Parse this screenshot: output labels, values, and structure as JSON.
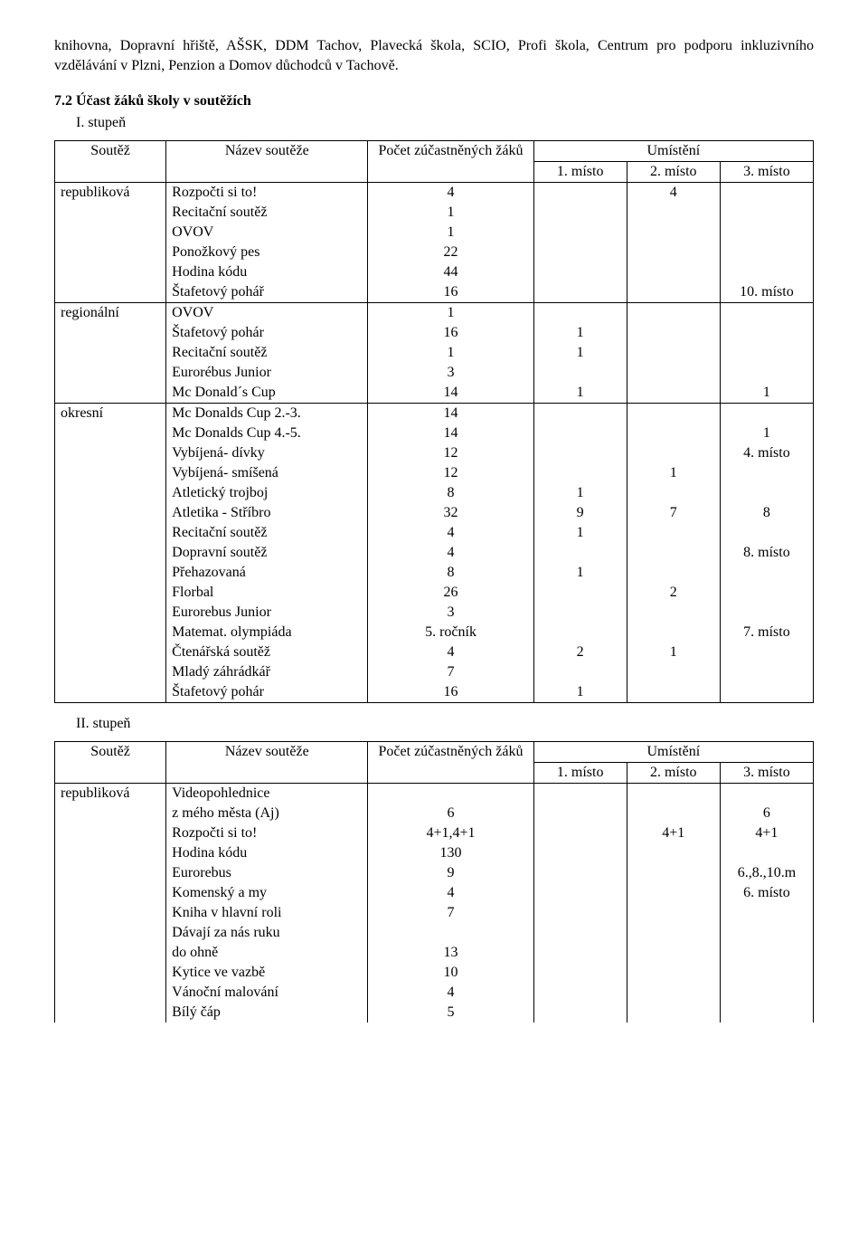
{
  "intro": "knihovna, Dopravní hřiště, AŠSK, DDM Tachov, Plavecká škola, SCIO, Profi škola, Centrum pro podporu inkluzivního vzdělávání v Plzni, Penzion a Domov důchodců v Tachově.",
  "section_heading": "7.2 Účast žáků školy v soutěžích",
  "sub1": "I. stupeň",
  "sub2": "II. stupeň",
  "headers": {
    "soutez": "Soutěž",
    "nazev": "Název soutěže",
    "pocet": "Počet zúčastněných žáků",
    "umisteni": "Umístění",
    "m1": "1. místo",
    "m2": "2. místo",
    "m3": "3. místo"
  },
  "t1": {
    "groups": [
      {
        "type": "republiková",
        "rows": [
          {
            "n": "Rozpočti si to!",
            "p": "4",
            "m1": "",
            "m2": "4",
            "m3": ""
          },
          {
            "n": "Recitační soutěž",
            "p": "1",
            "m1": "",
            "m2": "",
            "m3": ""
          },
          {
            "n": "OVOV",
            "p": "1",
            "m1": "",
            "m2": "",
            "m3": ""
          },
          {
            "n": "Ponožkový pes",
            "p": "22",
            "m1": "",
            "m2": "",
            "m3": ""
          },
          {
            "n": "Hodina kódu",
            "p": "44",
            "m1": "",
            "m2": "",
            "m3": ""
          },
          {
            "n": "Štafetový pohář",
            "p": "16",
            "m1": "",
            "m2": "",
            "m3": "10. místo"
          }
        ]
      },
      {
        "type": "regionální",
        "rows": [
          {
            "n": "OVOV",
            "p": "1",
            "m1": "",
            "m2": "",
            "m3": ""
          },
          {
            "n": "Štafetový pohár",
            "p": "16",
            "m1": "1",
            "m2": "",
            "m3": ""
          },
          {
            "n": "Recitační soutěž",
            "p": "1",
            "m1": "1",
            "m2": "",
            "m3": ""
          },
          {
            "n": "Eurorébus Junior",
            "p": "3",
            "m1": "",
            "m2": "",
            "m3": ""
          },
          {
            "n": "Mc Donald´s Cup",
            "p": "14",
            "m1": "1",
            "m2": "",
            "m3": "1"
          }
        ]
      },
      {
        "type": "okresní",
        "rows": [
          {
            "n": "Mc Donalds Cup 2.-3.",
            "p": "14",
            "m1": "",
            "m2": "",
            "m3": ""
          },
          {
            "n": "Mc Donalds Cup 4.-5.",
            "p": "14",
            "m1": "",
            "m2": "",
            "m3": "1"
          },
          {
            "n": "Vybíjená- dívky",
            "p": "12",
            "m1": "",
            "m2": "",
            "m3": "4. místo"
          },
          {
            "n": "Vybíjená- smíšená",
            "p": "12",
            "m1": "",
            "m2": "1",
            "m3": ""
          },
          {
            "n": "Atletický trojboj",
            "p": "8",
            "m1": "1",
            "m2": "",
            "m3": ""
          },
          {
            "n": "Atletika - Stříbro",
            "p": "32",
            "m1": "9",
            "m2": "7",
            "m3": "8"
          },
          {
            "n": "Recitační soutěž",
            "p": "4",
            "m1": "1",
            "m2": "",
            "m3": ""
          },
          {
            "n": "Dopravní soutěž",
            "p": "4",
            "m1": "",
            "m2": "",
            "m3": "8. místo"
          },
          {
            "n": "Přehazovaná",
            "p": "8",
            "m1": "1",
            "m2": "",
            "m3": ""
          },
          {
            "n": "Florbal",
            "p": "26",
            "m1": "",
            "m2": "2",
            "m3": ""
          },
          {
            "n": "Eurorebus Junior",
            "p": "3",
            "m1": "",
            "m2": "",
            "m3": ""
          },
          {
            "n": "Matemat. olympiáda",
            "p": "5. ročník",
            "m1": "",
            "m2": "",
            "m3": "7. místo"
          },
          {
            "n": "Čtenářská soutěž",
            "p": "4",
            "m1": "2",
            "m2": "1",
            "m3": ""
          },
          {
            "n": "Mladý záhrádkář",
            "p": "7",
            "m1": "",
            "m2": "",
            "m3": ""
          },
          {
            "n": "Štafetový pohár",
            "p": "16",
            "m1": "1",
            "m2": "",
            "m3": ""
          }
        ]
      }
    ]
  },
  "t2": {
    "groups": [
      {
        "type": "republiková",
        "rows": [
          {
            "n": "Videopohlednice",
            "p": "",
            "m1": "",
            "m2": "",
            "m3": ""
          },
          {
            "n": "z mého města (Aj)",
            "p": "6",
            "m1": "",
            "m2": "",
            "m3": "6"
          },
          {
            "n": "Rozpočti si to!",
            "p": "4+1,4+1",
            "m1": "",
            "m2": "4+1",
            "m3": "4+1"
          },
          {
            "n": "Hodina kódu",
            "p": "130",
            "m1": "",
            "m2": "",
            "m3": ""
          },
          {
            "n": "Eurorebus",
            "p": "9",
            "m1": "",
            "m2": "",
            "m3": "6.,8.,10.m"
          },
          {
            "n": "Komenský a my",
            "p": "4",
            "m1": "",
            "m2": "",
            "m3": "6. místo"
          },
          {
            "n": "Kniha v hlavní roli",
            "p": "7",
            "m1": "",
            "m2": "",
            "m3": ""
          },
          {
            "n": "Dávají za nás ruku",
            "p": "",
            "m1": "",
            "m2": "",
            "m3": ""
          },
          {
            "n": "do ohně",
            "p": "13",
            "m1": "",
            "m2": "",
            "m3": ""
          },
          {
            "n": "Kytice ve vazbě",
            "p": "10",
            "m1": "",
            "m2": "",
            "m3": ""
          },
          {
            "n": "Vánoční malování",
            "p": "4",
            "m1": "",
            "m2": "",
            "m3": ""
          },
          {
            "n": "Bílý čáp",
            "p": "5",
            "m1": "",
            "m2": "",
            "m3": ""
          }
        ]
      }
    ]
  }
}
